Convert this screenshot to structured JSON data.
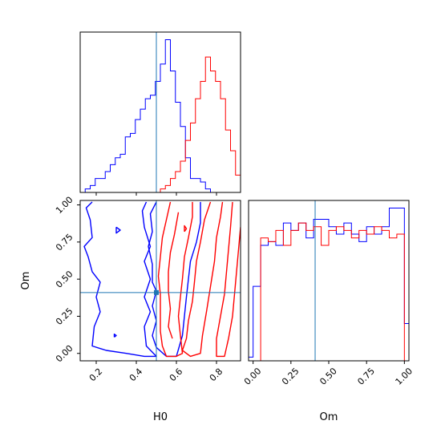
{
  "chart_data": {
    "type": "corner",
    "parameters": [
      "H0",
      "Om"
    ],
    "truths": {
      "H0": 0.5,
      "Om": 0.41
    },
    "colors": {
      "series_a": "#0000ff",
      "series_b": "#ff0000",
      "truth": "#1f77b4"
    },
    "panels": [
      {
        "id": "H0-marginal",
        "type": "histogram",
        "xlim": [
          0.12,
          0.92
        ],
        "x_ticks": [
          0.2,
          0.4,
          0.6,
          0.8
        ],
        "tick_labels_shown": false,
        "bin_edges": [
          0.12,
          0.145,
          0.17,
          0.195,
          0.22,
          0.245,
          0.27,
          0.295,
          0.32,
          0.345,
          0.37,
          0.395,
          0.42,
          0.445,
          0.47,
          0.495,
          0.52,
          0.545,
          0.57,
          0.595,
          0.62,
          0.645,
          0.67,
          0.695,
          0.72,
          0.745,
          0.77,
          0.795,
          0.82,
          0.845,
          0.87,
          0.895,
          0.92
        ],
        "series": [
          {
            "color_key": "series_a",
            "counts": [
              0,
              1,
              2,
              4,
              4,
              6,
              8,
              10,
              11,
              16,
              17,
              21,
              24,
              27,
              28,
              32,
              37,
              44,
              35,
              26,
              19,
              10,
              4,
              4,
              3,
              1,
              0,
              0,
              0,
              0,
              0,
              0
            ]
          },
          {
            "color_key": "series_b",
            "counts": [
              0,
              0,
              0,
              0,
              0,
              0,
              0,
              0,
              0,
              0,
              0,
              0,
              0,
              0,
              0,
              0,
              1,
              2,
              4,
              6,
              9,
              15,
              20,
              27,
              32,
              39,
              35,
              32,
              27,
              18,
              12,
              5
            ]
          }
        ]
      },
      {
        "id": "H0-Om-joint",
        "type": "contour",
        "xlim": [
          0.12,
          0.92
        ],
        "ylim": [
          -0.05,
          1.03
        ],
        "xlabel": "H0",
        "ylabel": "Om",
        "x_ticks": [
          "0.2",
          "0.4",
          "0.6",
          "0.8"
        ],
        "y_ticks": [
          "0.00",
          "0.25",
          "0.50",
          "0.75",
          "1.00"
        ],
        "contours": [
          {
            "color_key": "series_a",
            "points": [
              [
                0.18,
                1.02
              ],
              [
                0.15,
                0.98
              ],
              [
                0.17,
                0.9
              ],
              [
                0.18,
                0.78
              ],
              [
                0.14,
                0.72
              ],
              [
                0.16,
                0.65
              ],
              [
                0.18,
                0.55
              ],
              [
                0.22,
                0.48
              ],
              [
                0.2,
                0.38
              ],
              [
                0.22,
                0.28
              ],
              [
                0.19,
                0.18
              ],
              [
                0.18,
                0.05
              ],
              [
                0.25,
                0.02
              ],
              [
                0.35,
                0.0
              ],
              [
                0.44,
                -0.02
              ],
              [
                0.5,
                -0.02
              ],
              [
                0.45,
                0.05
              ],
              [
                0.44,
                0.18
              ],
              [
                0.47,
                0.28
              ],
              [
                0.44,
                0.38
              ],
              [
                0.47,
                0.5
              ],
              [
                0.44,
                0.62
              ],
              [
                0.47,
                0.72
              ],
              [
                0.44,
                0.85
              ],
              [
                0.43,
                0.96
              ],
              [
                0.45,
                1.02
              ]
            ]
          },
          {
            "color_key": "series_a",
            "points": [
              [
                0.5,
                1.02
              ],
              [
                0.47,
                0.94
              ],
              [
                0.48,
                0.82
              ],
              [
                0.46,
                0.72
              ],
              [
                0.48,
                0.6
              ],
              [
                0.48,
                0.48
              ],
              [
                0.5,
                0.42
              ],
              [
                0.48,
                0.32
              ],
              [
                0.5,
                0.22
              ],
              [
                0.48,
                0.12
              ],
              [
                0.5,
                0.04
              ],
              [
                0.55,
                -0.02
              ],
              [
                0.6,
                -0.02
              ]
            ]
          },
          {
            "color_key": "series_a",
            "points": [
              [
                0.6,
                -0.02
              ],
              [
                0.63,
                0.12
              ],
              [
                0.64,
                0.25
              ],
              [
                0.65,
                0.38
              ],
              [
                0.66,
                0.5
              ],
              [
                0.67,
                0.62
              ],
              [
                0.7,
                0.75
              ],
              [
                0.72,
                0.88
              ],
              [
                0.72,
                1.02
              ]
            ]
          },
          {
            "color_key": "series_a",
            "points": [
              [
                0.3,
                0.85
              ],
              [
                0.32,
                0.83
              ],
              [
                0.3,
                0.81
              ],
              [
                0.3,
                0.85
              ]
            ]
          },
          {
            "color_key": "series_a",
            "points": [
              [
                0.29,
                0.11
              ],
              [
                0.3,
                0.12
              ],
              [
                0.29,
                0.13
              ],
              [
                0.29,
                0.11
              ]
            ]
          },
          {
            "color_key": "series_b",
            "points": [
              [
                0.57,
                1.02
              ],
              [
                0.55,
                0.9
              ],
              [
                0.53,
                0.78
              ],
              [
                0.52,
                0.65
              ],
              [
                0.51,
                0.52
              ],
              [
                0.52,
                0.4
              ],
              [
                0.52,
                0.28
              ],
              [
                0.52,
                0.15
              ],
              [
                0.53,
                0.05
              ],
              [
                0.55,
                -0.02
              ],
              [
                0.6,
                -0.02
              ],
              [
                0.63,
                0.0
              ],
              [
                0.62,
                0.12
              ],
              [
                0.61,
                0.25
              ],
              [
                0.62,
                0.38
              ],
              [
                0.63,
                0.5
              ],
              [
                0.64,
                0.65
              ],
              [
                0.66,
                0.78
              ],
              [
                0.68,
                0.92
              ],
              [
                0.68,
                1.02
              ]
            ]
          },
          {
            "color_key": "series_b",
            "points": [
              [
                0.61,
                0.95
              ],
              [
                0.59,
                0.8
              ],
              [
                0.57,
                0.68
              ],
              [
                0.56,
                0.55
              ],
              [
                0.56,
                0.42
              ],
              [
                0.57,
                0.3
              ],
              [
                0.56,
                0.18
              ],
              [
                0.58,
                0.1
              ]
            ]
          },
          {
            "color_key": "series_b",
            "points": [
              [
                0.77,
                1.02
              ],
              [
                0.74,
                0.9
              ],
              [
                0.72,
                0.75
              ],
              [
                0.7,
                0.62
              ],
              [
                0.69,
                0.48
              ],
              [
                0.68,
                0.35
              ],
              [
                0.66,
                0.22
              ],
              [
                0.65,
                0.1
              ],
              [
                0.63,
                0.02
              ],
              [
                0.67,
                -0.02
              ],
              [
                0.72,
                0.0
              ],
              [
                0.73,
                0.12
              ],
              [
                0.75,
                0.28
              ],
              [
                0.77,
                0.45
              ],
              [
                0.79,
                0.62
              ],
              [
                0.8,
                0.78
              ],
              [
                0.82,
                0.92
              ],
              [
                0.83,
                1.02
              ]
            ]
          },
          {
            "color_key": "series_b",
            "points": [
              [
                0.88,
                1.02
              ],
              [
                0.87,
                0.85
              ],
              [
                0.86,
                0.7
              ],
              [
                0.85,
                0.55
              ],
              [
                0.84,
                0.4
              ],
              [
                0.82,
                0.25
              ],
              [
                0.8,
                0.1
              ],
              [
                0.8,
                -0.02
              ],
              [
                0.84,
                -0.02
              ],
              [
                0.86,
                0.1
              ],
              [
                0.88,
                0.25
              ],
              [
                0.89,
                0.4
              ],
              [
                0.9,
                0.55
              ],
              [
                0.91,
                0.7
              ],
              [
                0.92,
                0.85
              ]
            ]
          },
          {
            "color_key": "series_b",
            "points": [
              [
                0.64,
                0.82
              ],
              [
                0.65,
                0.84
              ],
              [
                0.64,
                0.86
              ],
              [
                0.64,
                0.82
              ]
            ]
          }
        ]
      },
      {
        "id": "Om-marginal",
        "type": "histogram",
        "xlim": [
          -0.03,
          1.03
        ],
        "xlabel": "Om",
        "x_ticks": [
          "0.00",
          "0.25",
          "0.50",
          "0.75",
          "1.00"
        ],
        "bin_edges": [
          -0.03,
          0.0,
          0.05,
          0.1,
          0.15,
          0.2,
          0.25,
          0.3,
          0.35,
          0.4,
          0.45,
          0.5,
          0.55,
          0.6,
          0.65,
          0.7,
          0.75,
          0.8,
          0.85,
          0.9,
          0.95,
          1.0,
          1.03
        ],
        "series": [
          {
            "color_key": "series_a",
            "counts": [
              2,
              40,
              62,
              64,
              62,
              74,
              70,
              74,
              66,
              76,
              76,
              72,
              68,
              74,
              68,
              64,
              72,
              68,
              72,
              82,
              82,
              20
            ]
          },
          {
            "color_key": "series_b",
            "counts": [
              0,
              0,
              66,
              64,
              70,
              62,
              70,
              74,
              70,
              72,
              62,
              70,
              72,
              70,
              66,
              70,
              68,
              72,
              70,
              66,
              68,
              0
            ]
          }
        ]
      }
    ]
  }
}
